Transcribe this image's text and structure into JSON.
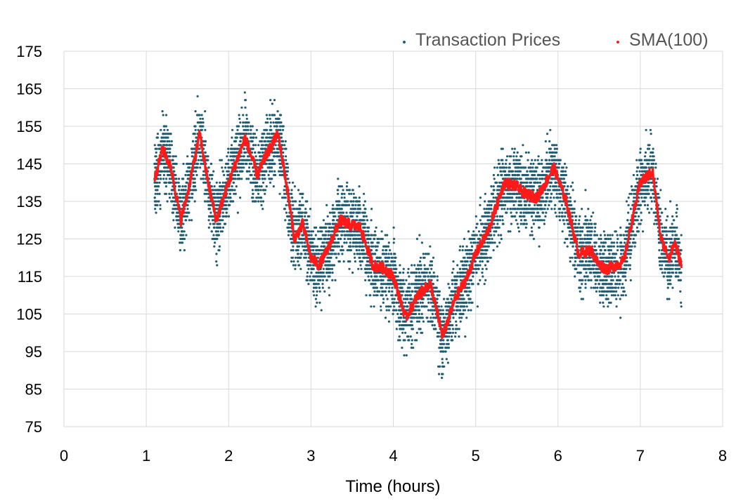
{
  "chart_data": {
    "type": "scatter",
    "title": "",
    "xlabel": "Time (hours)",
    "ylabel": "",
    "xlim": [
      0,
      8
    ],
    "ylim": [
      75,
      175
    ],
    "x_ticks": [
      0,
      1,
      2,
      3,
      4,
      5,
      6,
      7,
      8
    ],
    "y_ticks": [
      75,
      85,
      95,
      105,
      115,
      125,
      135,
      145,
      155,
      165,
      175
    ],
    "grid": true,
    "legend_position": "top-right",
    "colors": {
      "prices": "#1f5c73",
      "sma": "#ff1a1a",
      "grid": "#d9d9d9"
    },
    "series": [
      {
        "name": "Transaction Prices",
        "kind": "points",
        "x_range": [
          1.1,
          7.5
        ],
        "trend_note": "dense cloud of trade prices spread roughly ±10 around the SMA",
        "trend_x": [
          1.1,
          1.2,
          1.3,
          1.42,
          1.5,
          1.65,
          1.75,
          1.85,
          2.0,
          2.2,
          2.35,
          2.45,
          2.6,
          2.7,
          2.8,
          2.9,
          3.0,
          3.1,
          3.2,
          3.35,
          3.45,
          3.6,
          3.75,
          3.9,
          4.0,
          4.15,
          4.3,
          4.45,
          4.6,
          4.75,
          4.9,
          5.0,
          5.15,
          5.35,
          5.5,
          5.6,
          5.75,
          5.95,
          6.1,
          6.25,
          6.4,
          6.5,
          6.6,
          6.8,
          6.9,
          7.0,
          7.15,
          7.25,
          7.35,
          7.42,
          7.5
        ],
        "trend_y": [
          141,
          149,
          144,
          130,
          137,
          153,
          140,
          130,
          140,
          152,
          142,
          147,
          153,
          140,
          125,
          129,
          120,
          118,
          122,
          130,
          129,
          128,
          118,
          117,
          115,
          104,
          110,
          113,
          99,
          109,
          115,
          121,
          127,
          140,
          139,
          137,
          136,
          144,
          135,
          121,
          122,
          118,
          117,
          119,
          130,
          140,
          143,
          125,
          120,
          124,
          118
        ],
        "spread": 9
      },
      {
        "name": "SMA(100)",
        "kind": "line",
        "x": [
          1.1,
          1.2,
          1.3,
          1.42,
          1.5,
          1.65,
          1.75,
          1.85,
          2.0,
          2.2,
          2.35,
          2.45,
          2.6,
          2.7,
          2.8,
          2.9,
          3.0,
          3.1,
          3.2,
          3.35,
          3.45,
          3.6,
          3.75,
          3.9,
          4.0,
          4.15,
          4.3,
          4.45,
          4.6,
          4.75,
          4.9,
          5.0,
          5.15,
          5.35,
          5.5,
          5.6,
          5.75,
          5.95,
          6.1,
          6.25,
          6.4,
          6.5,
          6.6,
          6.8,
          6.9,
          7.0,
          7.15,
          7.25,
          7.35,
          7.42,
          7.5
        ],
        "y": [
          141,
          149,
          144,
          130,
          137,
          153,
          140,
          130,
          140,
          152,
          142,
          147,
          153,
          140,
          125,
          129,
          120,
          118,
          122,
          130,
          129,
          128,
          118,
          117,
          115,
          104,
          110,
          113,
          99,
          109,
          115,
          121,
          127,
          140,
          139,
          137,
          136,
          144,
          135,
          121,
          122,
          118,
          117,
          119,
          130,
          140,
          143,
          125,
          120,
          124,
          118
        ]
      }
    ]
  }
}
